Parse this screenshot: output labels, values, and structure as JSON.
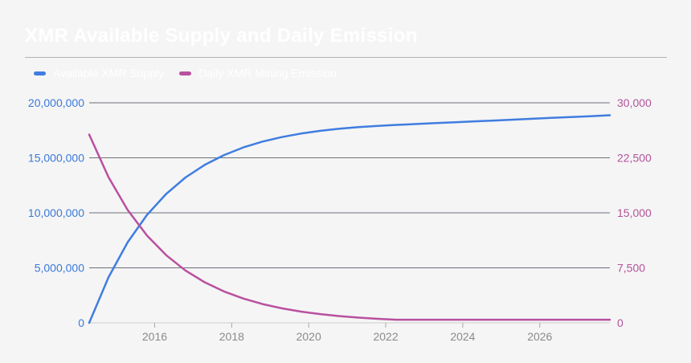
{
  "header": {
    "title": "XMR Available Supply and Daily Emission"
  },
  "colors": {
    "background": "#f5f5f5",
    "title_text": "#ffffff",
    "divider": "#b2b2b2",
    "gridline": "#6d717b",
    "baseline": "#cdcdcd",
    "x_tick": "#a8a8a8",
    "supply_blue": "#3f7de0",
    "emission_magenta": "#b9509f",
    "left_axis_label": "#3b79da",
    "right_axis_label": "#b4539c",
    "x_axis_label": "#8a8a8a"
  },
  "chart_data": {
    "type": "line",
    "title": "XMR Available Supply and Daily Emission",
    "legend_position": "top",
    "grid": true,
    "x": [
      2014.3,
      2014.8,
      2015.3,
      2015.8,
      2016.3,
      2016.8,
      2017.3,
      2017.8,
      2018.3,
      2018.8,
      2019.3,
      2019.8,
      2020.3,
      2020.8,
      2021.3,
      2021.8,
      2022.28,
      2022.8,
      2023.3,
      2023.8,
      2024.3,
      2024.8,
      2025.3,
      2025.8,
      2026.3,
      2026.8,
      2027.3,
      2027.82
    ],
    "series": [
      {
        "name": "Available XMR Supply",
        "axis": "left",
        "color": "#3f7de0",
        "values": [
          0,
          4132000,
          7331000,
          9808000,
          11725000,
          13210000,
          14359000,
          15249000,
          15938000,
          16471000,
          16884000,
          17204000,
          17451000,
          17643000,
          17791000,
          17906000,
          17992000,
          18074000,
          18153000,
          18232000,
          18311000,
          18390000,
          18468000,
          18547000,
          18626000,
          18705000,
          18784000,
          18866000
        ]
      },
      {
        "name": "Daily XMR Mining Emission",
        "axis": "right",
        "color": "#b9509f",
        "values": [
          25670,
          19874,
          15386,
          11912,
          9223,
          7140,
          5528,
          4280,
          3313,
          2565,
          1986,
          1537,
          1190,
          921,
          713,
          552,
          432,
          432,
          432,
          432,
          432,
          432,
          432,
          432,
          432,
          432,
          432,
          432
        ]
      }
    ],
    "left_axis": {
      "min": 0,
      "max": 20000000,
      "color": "#3b79da",
      "ticks": [
        {
          "value": 20000000,
          "label": "20,000,000"
        },
        {
          "value": 15000000,
          "label": "15,000,000"
        },
        {
          "value": 10000000,
          "label": "10,000,000"
        },
        {
          "value": 5000000,
          "label": "5,000,000"
        },
        {
          "value": 0,
          "label": "0"
        }
      ]
    },
    "right_axis": {
      "min": 0,
      "max": 30000,
      "color": "#b4539c",
      "ticks": [
        {
          "value": 30000,
          "label": "30,000"
        },
        {
          "value": 22500,
          "label": "22,500"
        },
        {
          "value": 15000,
          "label": "15,000"
        },
        {
          "value": 7500,
          "label": "7,500"
        },
        {
          "value": 0,
          "label": "0"
        }
      ]
    },
    "x_axis": {
      "min": 2014.3,
      "max": 2027.82,
      "color": "#8a8a8a",
      "ticks": [
        {
          "value": 2016,
          "label": "2016"
        },
        {
          "value": 2018,
          "label": "2018"
        },
        {
          "value": 2020,
          "label": "2020"
        },
        {
          "value": 2022,
          "label": "2022"
        },
        {
          "value": 2024,
          "label": "2024"
        },
        {
          "value": 2026,
          "label": "2026"
        }
      ]
    }
  }
}
